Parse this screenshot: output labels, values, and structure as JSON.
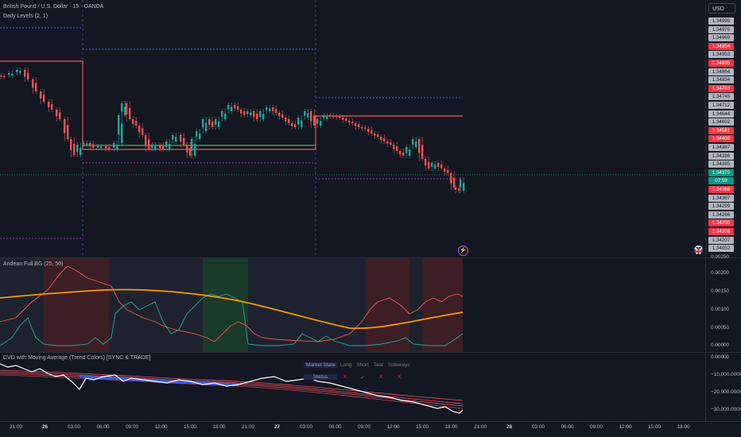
{
  "header": {
    "symbol": "British Pound / U.S. Dollar · 15 · OANDA",
    "indicator": "Daily Levels (2, 1)",
    "currency": "USD"
  },
  "price_axis": {
    "labels": [
      {
        "text": "1.34999",
        "color": "#b2b5be",
        "bg": "#b2b5be"
      },
      {
        "text": "1.34970",
        "color": "#b2b5be",
        "bg": "#b2b5be"
      },
      {
        "text": "1.34969",
        "color": "#b2b5be",
        "bg": "#b2b5be"
      },
      {
        "text": "1.34954",
        "color": "#f23645",
        "bg": "#f23645"
      },
      {
        "text": "1.34953",
        "color": "#b2b5be",
        "bg": "#b2b5be"
      },
      {
        "text": "1.34895",
        "color": "#f23645",
        "bg": "#f23645"
      },
      {
        "text": "1.34864",
        "color": "#b2b5be",
        "bg": "#b2b5be"
      },
      {
        "text": "1.34834",
        "color": "#b2b5be",
        "bg": "#b2b5be"
      },
      {
        "text": "1.34763",
        "color": "#f23645",
        "bg": "#f23645"
      },
      {
        "text": "1.34745",
        "color": "#b2b5be",
        "bg": "#b2b5be"
      },
      {
        "text": "1.34712",
        "color": "#b2b5be",
        "bg": "#b2b5be"
      },
      {
        "text": "1.34644",
        "color": "#b2b5be",
        "bg": "#b2b5be"
      },
      {
        "text": "1.34602",
        "color": "#b2b5be",
        "bg": "#b2b5be"
      },
      {
        "text": "1.34581",
        "color": "#f23645",
        "bg": "#f23645"
      },
      {
        "text": "1.34409",
        "color": "#f23645",
        "bg": "#f23645"
      },
      {
        "text": "1.34387",
        "color": "#b2b5be",
        "bg": "#b2b5be"
      },
      {
        "text": "1.34386",
        "color": "#b2b5be",
        "bg": "#b2b5be"
      },
      {
        "text": "1.34385",
        "color": "#b2b5be",
        "bg": "#b2b5be"
      },
      {
        "text": "1.34370",
        "color": "#089981",
        "bg": "#089981"
      },
      {
        "text": "07:59",
        "color": "#089981",
        "bg": "#089981"
      },
      {
        "text": "1.34368",
        "color": "#f23645",
        "bg": "#f23645"
      },
      {
        "text": "1.34367",
        "color": "#b2b5be",
        "bg": "#b2b5be"
      },
      {
        "text": "1.34299",
        "color": "#b2b5be",
        "bg": "#b2b5be"
      },
      {
        "text": "1.34266",
        "color": "#b2b5be",
        "bg": "#b2b5be"
      },
      {
        "text": "1.34230",
        "color": "#f23645",
        "bg": "#f23645"
      },
      {
        "text": "1.34208",
        "color": "#f23645",
        "bg": "#f23645"
      },
      {
        "text": "1.34207",
        "color": "#b2b5be",
        "bg": "#b2b5be"
      },
      {
        "text": "1.34052",
        "color": "#b2b5be",
        "bg": "#b2b5be"
      }
    ]
  },
  "andean": {
    "title": "Andean Full BG (25, 50)",
    "axis": [
      "0.00250",
      "0.00200",
      "0.00150",
      "0.00100",
      "0.00050",
      "0.00000"
    ]
  },
  "cvd": {
    "title": "CVD with Moving Average (Trend Colors) [SYNC & TRADE]",
    "axis": [
      "0.00000",
      "−10,000.00000",
      "−20,000.00000",
      "−30,000.00000"
    ]
  },
  "status_table": {
    "headers": [
      "Market State",
      "Long",
      "Short",
      "Test",
      "Sideways"
    ],
    "row_label": "Status",
    "values": [
      "X",
      "✓",
      "X",
      "X"
    ]
  },
  "time_axis": [
    {
      "t": "21:00",
      "bold": false
    },
    {
      "t": "26",
      "bold": true
    },
    {
      "t": "03:00",
      "bold": false
    },
    {
      "t": "06:00",
      "bold": false
    },
    {
      "t": "09:00",
      "bold": false
    },
    {
      "t": "12:00",
      "bold": false
    },
    {
      "t": "15:00",
      "bold": false
    },
    {
      "t": "18:00",
      "bold": false
    },
    {
      "t": "21:00",
      "bold": false
    },
    {
      "t": "27",
      "bold": true
    },
    {
      "t": "03:00",
      "bold": false
    },
    {
      "t": "06:00",
      "bold": false
    },
    {
      "t": "09:00",
      "bold": false
    },
    {
      "t": "12:00",
      "bold": false
    },
    {
      "t": "15:00",
      "bold": false
    },
    {
      "t": "18:00",
      "bold": false
    },
    {
      "t": "21:00",
      "bold": false
    },
    {
      "t": "28",
      "bold": true
    },
    {
      "t": "03:00",
      "bold": false
    },
    {
      "t": "06:00",
      "bold": false
    },
    {
      "t": "09:00",
      "bold": false
    },
    {
      "t": "12:00",
      "bold": false
    },
    {
      "t": "15:00",
      "bold": false
    },
    {
      "t": "18:00",
      "bold": false
    }
  ],
  "colors": {
    "up": "#26a69a",
    "down": "#ef5350",
    "resistance": "#f7525f",
    "support": "#4caf50",
    "daily_blue": "#2962ff",
    "daily_purple": "#9c27b0",
    "andean_orange": "#ff9800"
  },
  "icons": {
    "bolt": "lightning-icon",
    "flag": "uk-flag-icon"
  }
}
